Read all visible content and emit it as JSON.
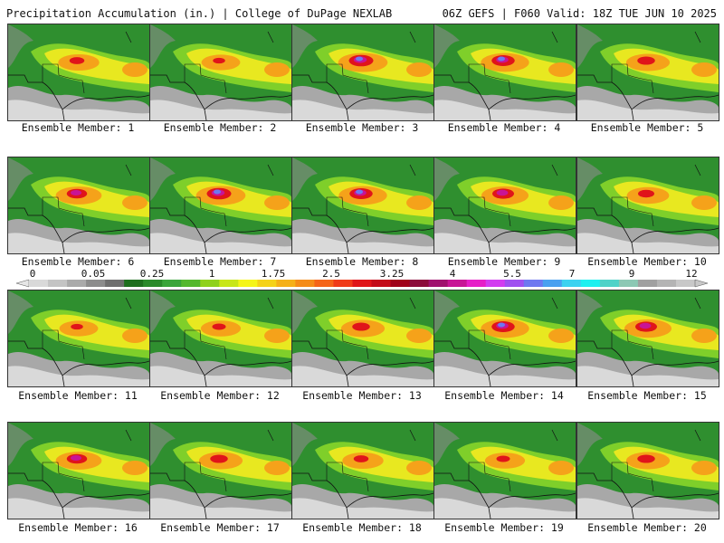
{
  "header": {
    "left": "Precipitation Accumulation (in.) | College of DuPage NEXLAB",
    "right": "06Z GEFS | F060 Valid: 18Z TUE JUN 10 2025"
  },
  "panels": [
    {
      "label": "Ensemble Member: 1",
      "intensity": 0.55
    },
    {
      "label": "Ensemble Member: 2",
      "intensity": 0.45
    },
    {
      "label": "Ensemble Member: 3",
      "intensity": 0.9
    },
    {
      "label": "Ensemble Member: 4",
      "intensity": 0.85
    },
    {
      "label": "Ensemble Member: 5",
      "intensity": 0.65
    },
    {
      "label": "Ensemble Member: 6",
      "intensity": 0.75
    },
    {
      "label": "Ensemble Member: 7",
      "intensity": 0.9
    },
    {
      "label": "Ensemble Member: 8",
      "intensity": 0.85
    },
    {
      "label": "Ensemble Member: 9",
      "intensity": 0.8
    },
    {
      "label": "Ensemble Member: 10",
      "intensity": 0.6
    },
    {
      "label": "Ensemble Member: 11",
      "intensity": 0.45
    },
    {
      "label": "Ensemble Member: 12",
      "intensity": 0.5
    },
    {
      "label": "Ensemble Member: 13",
      "intensity": 0.65
    },
    {
      "label": "Ensemble Member: 14",
      "intensity": 0.85
    },
    {
      "label": "Ensemble Member: 15",
      "intensity": 0.8
    },
    {
      "label": "Ensemble Member: 16",
      "intensity": 0.75
    },
    {
      "label": "Ensemble Member: 17",
      "intensity": 0.65
    },
    {
      "label": "Ensemble Member: 18",
      "intensity": 0.55
    },
    {
      "label": "Ensemble Member: 19",
      "intensity": 0.5
    },
    {
      "label": "Ensemble Member: 20",
      "intensity": 0.65
    }
  ],
  "colorbar": {
    "labels": [
      "0",
      "0.05",
      "0.25",
      "1",
      "1.75",
      "2.5",
      "3.25",
      "4",
      "5.5",
      "7",
      "9",
      "12"
    ],
    "colors": [
      "#d9d9d9",
      "#c4c4c4",
      "#aaaaaa",
      "#8c8c8c",
      "#6e6e6e",
      "#1e6f1e",
      "#2a8a2a",
      "#3aa53a",
      "#55b82e",
      "#8fd11c",
      "#c8e61a",
      "#f5f51a",
      "#f5d21a",
      "#f5b01a",
      "#f58c1a",
      "#f5641a",
      "#f03a1a",
      "#e0141a",
      "#c40a1a",
      "#a0001a",
      "#8b0a3a",
      "#a0106e",
      "#c81496",
      "#e61ec8",
      "#d23cf0",
      "#a050f0",
      "#6e78f0",
      "#4aa0f0",
      "#3cd2f0",
      "#1ef0f0",
      "#50d2c8",
      "#8cc8b4",
      "#a0a0a0",
      "#b4b4b4",
      "#c8c8c8"
    ]
  }
}
